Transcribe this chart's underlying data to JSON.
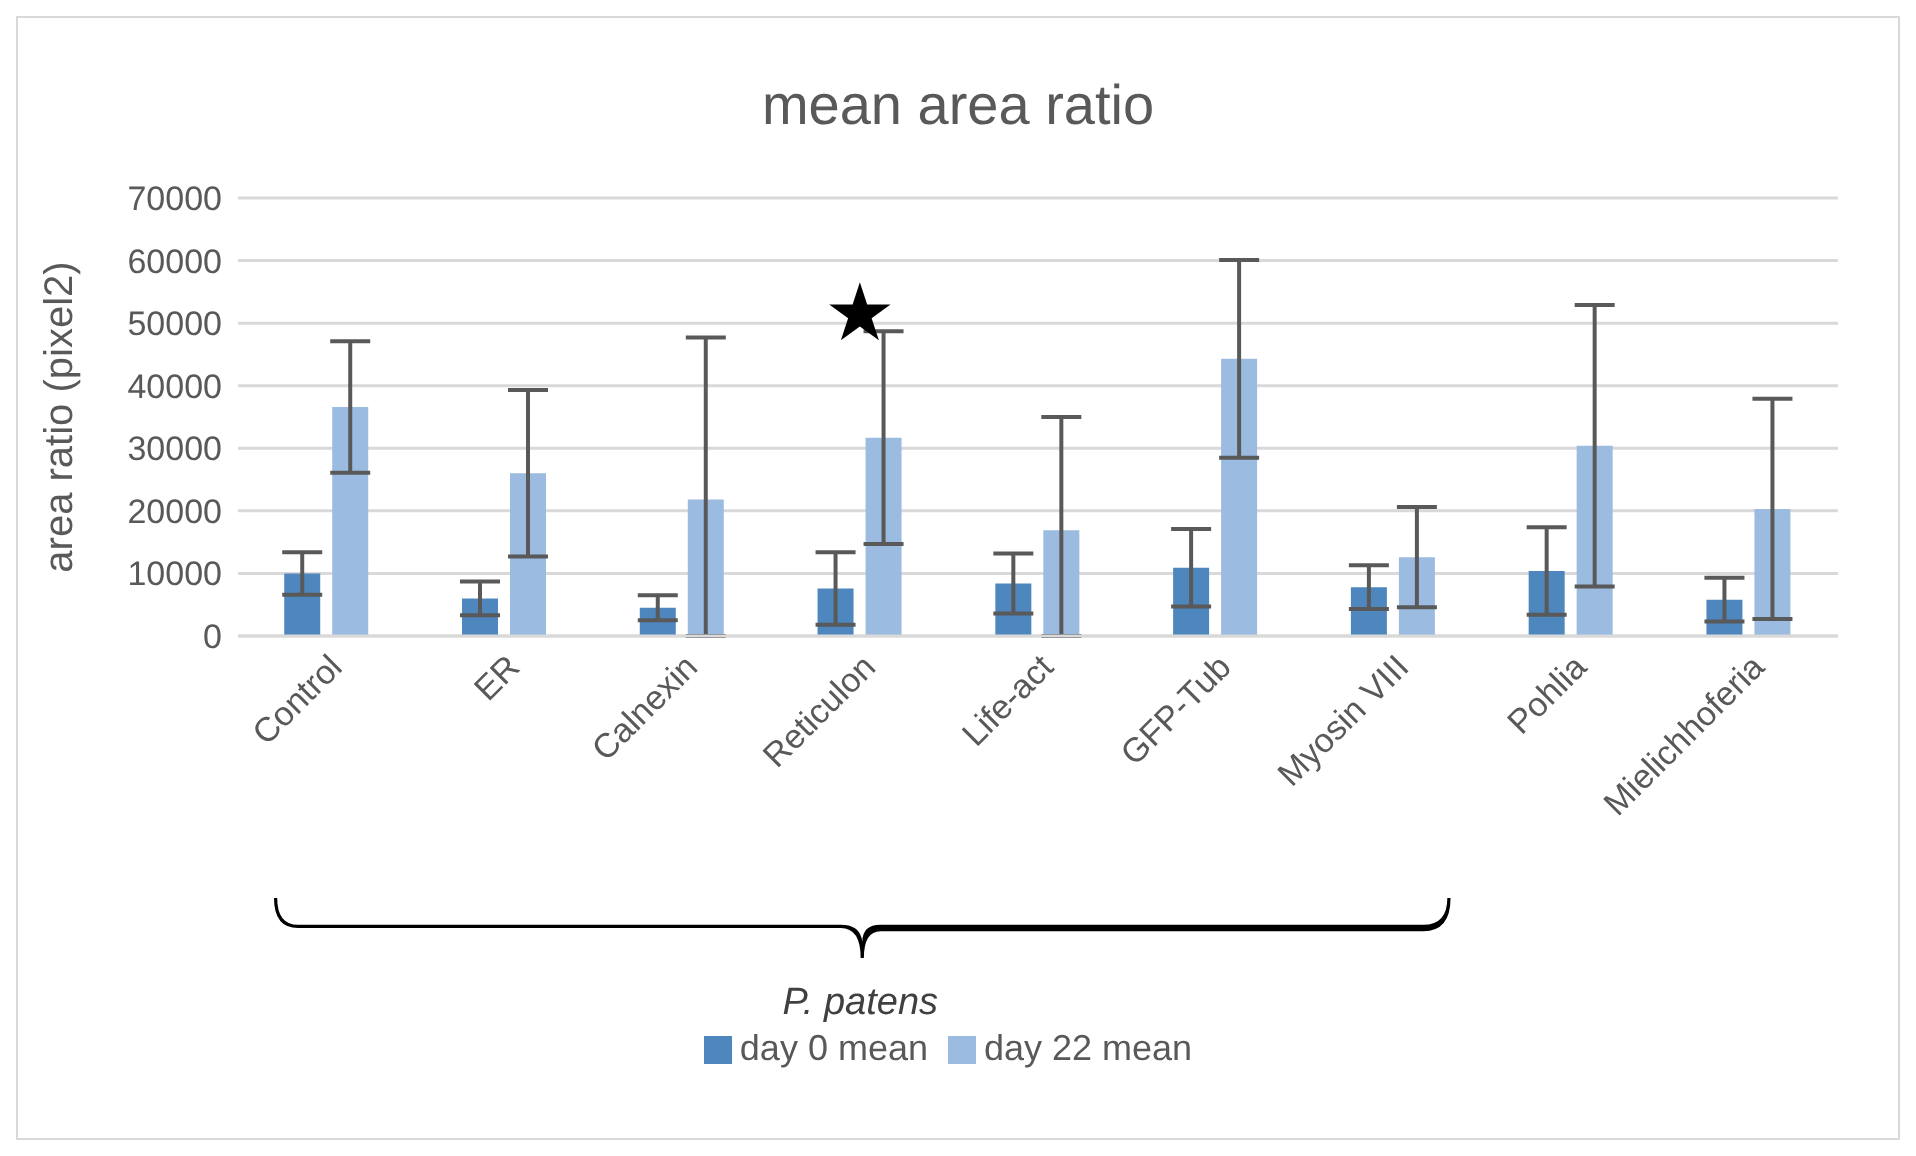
{
  "chart_data": {
    "type": "bar",
    "title": "mean area ratio",
    "ylabel": "area ratio (pixel2)",
    "categories": [
      "Control",
      "ER",
      "Calnexin",
      "Reticulon",
      "Life-act",
      "GFP-Tub",
      "Myosin VIII",
      "Pohlia",
      "Mielichhoferia"
    ],
    "series": [
      {
        "name": "day 0 mean",
        "color": "#4e86be",
        "values": [
          10000,
          6000,
          4500,
          7600,
          8400,
          10900,
          7800,
          10400,
          5800
        ],
        "errors": [
          3400,
          2700,
          2000,
          5800,
          4800,
          6200,
          3500,
          7000,
          3500
        ]
      },
      {
        "name": "day 22 mean",
        "color": "#9bbbe0",
        "values": [
          36600,
          26000,
          21800,
          31700,
          16900,
          44300,
          12600,
          30400,
          20300
        ],
        "errors": [
          10500,
          13300,
          [
            0,
            47700
          ],
          17000,
          [
            0,
            35000
          ],
          15800,
          8000,
          22500,
          17600
        ]
      }
    ],
    "ylim": [
      0,
      70000
    ],
    "yticks": [
      0,
      10000,
      20000,
      30000,
      40000,
      50000,
      60000,
      70000
    ],
    "grid": "y",
    "legend": "bottom",
    "annotations": [
      "★",
      "P. patens"
    ]
  }
}
